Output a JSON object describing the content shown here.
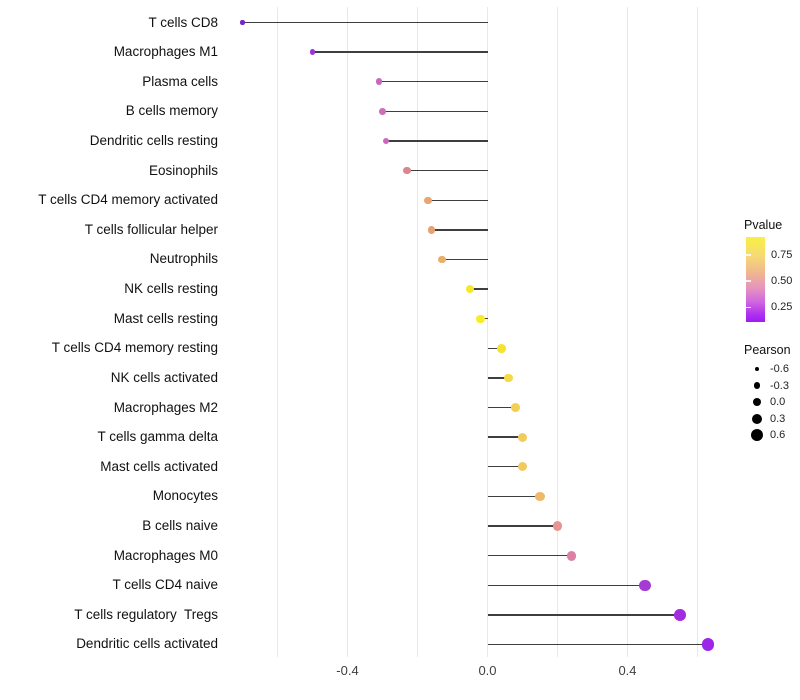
{
  "chart_data": {
    "type": "lollipop",
    "title": "",
    "xlabel": "",
    "ylabel": "",
    "xlim": [
      -0.72,
      0.72
    ],
    "x_ticks": [
      {
        "value": -0.4,
        "label": "-0.4"
      },
      {
        "value": 0.0,
        "label": "0.0"
      },
      {
        "value": 0.4,
        "label": "0.4"
      }
    ],
    "gridline_values": [
      -0.6,
      -0.4,
      -0.2,
      0.0,
      0.2,
      0.4,
      0.6
    ],
    "grid": "vertical gridlines only, no axis lines, white background",
    "points": [
      {
        "label": "T cells CD8",
        "pearson": -0.7,
        "pvalue_est": 0.01,
        "color": "#7227c9"
      },
      {
        "label": "Macrophages M1",
        "pearson": -0.5,
        "pvalue_est": 0.15,
        "color": "#9c35d8"
      },
      {
        "label": "Plasma cells",
        "pearson": -0.31,
        "pvalue_est": 0.3,
        "color": "#c767c3"
      },
      {
        "label": "B cells memory",
        "pearson": -0.3,
        "pvalue_est": 0.32,
        "color": "#cb70be"
      },
      {
        "label": "Dendritic cells resting",
        "pearson": -0.29,
        "pvalue_est": 0.32,
        "color": "#c969be"
      },
      {
        "label": "Eosinophils",
        "pearson": -0.23,
        "pvalue_est": 0.45,
        "color": "#db858e"
      },
      {
        "label": "T cells CD4 memory activated",
        "pearson": -0.17,
        "pvalue_est": 0.55,
        "color": "#e8a471"
      },
      {
        "label": "T cells follicular helper",
        "pearson": -0.16,
        "pvalue_est": 0.56,
        "color": "#e8a173"
      },
      {
        "label": "Neutrophils",
        "pearson": -0.13,
        "pvalue_est": 0.62,
        "color": "#ebae67"
      },
      {
        "label": "NK cells resting",
        "pearson": -0.05,
        "pvalue_est": 0.85,
        "color": "#f2e92f"
      },
      {
        "label": "Mast cells resting",
        "pearson": -0.02,
        "pvalue_est": 0.92,
        "color": "#f7ec27"
      },
      {
        "label": "T cells CD4 memory resting",
        "pearson": 0.04,
        "pvalue_est": 0.88,
        "color": "#f5e32f"
      },
      {
        "label": "NK cells activated",
        "pearson": 0.06,
        "pvalue_est": 0.8,
        "color": "#f2db46"
      },
      {
        "label": "Macrophages M2",
        "pearson": 0.08,
        "pvalue_est": 0.75,
        "color": "#f2d055"
      },
      {
        "label": "T cells gamma delta",
        "pearson": 0.1,
        "pvalue_est": 0.72,
        "color": "#f0cd5a"
      },
      {
        "label": "Mast cells activated",
        "pearson": 0.1,
        "pvalue_est": 0.7,
        "color": "#f0c95f"
      },
      {
        "label": "Monocytes",
        "pearson": 0.15,
        "pvalue_est": 0.6,
        "color": "#efb96c"
      },
      {
        "label": "B cells naive",
        "pearson": 0.2,
        "pvalue_est": 0.48,
        "color": "#e8958f"
      },
      {
        "label": "Macrophages M0",
        "pearson": 0.24,
        "pvalue_est": 0.38,
        "color": "#dd7fa3"
      },
      {
        "label": "T cells CD4 naive",
        "pearson": 0.45,
        "pvalue_est": 0.12,
        "color": "#a43bd3"
      },
      {
        "label": "T cells regulatory  Tregs",
        "pearson": 0.55,
        "pvalue_est": 0.06,
        "color": "#a32be0"
      },
      {
        "label": "Dendritic cells activated",
        "pearson": 0.63,
        "pvalue_est": 0.03,
        "color": "#9c27e8"
      }
    ],
    "stem_color": "#3e3e3e",
    "gridline_color": "#e8e8e8",
    "background": "#ffffff",
    "legends": {
      "pvalue": {
        "title": "Pvalue",
        "position": "right",
        "ticks": [
          {
            "value": 0.75,
            "label": "0.75"
          },
          {
            "value": 0.5,
            "label": "0.50"
          },
          {
            "value": 0.25,
            "label": "0.25"
          }
        ],
        "bar_value_top": 0.92,
        "bar_value_bottom": 0.11,
        "gradient_stops": [
          "#f9f042 0%",
          "#f6da74 22%",
          "#efb78f 42%",
          "#e694be 60%",
          "#d167df 76%",
          "#ac2ef0 92%",
          "#9e1bf5 100%"
        ]
      },
      "pearson": {
        "title": "Pearson",
        "position": "right",
        "dot_color": "#000000",
        "entries": [
          {
            "value": -0.6,
            "label": "-0.6"
          },
          {
            "value": -0.3,
            "label": "-0.3"
          },
          {
            "value": 0.0,
            "label": "0.0"
          },
          {
            "value": 0.3,
            "label": "0.3"
          },
          {
            "value": 0.6,
            "label": "0.6"
          }
        ]
      }
    }
  }
}
